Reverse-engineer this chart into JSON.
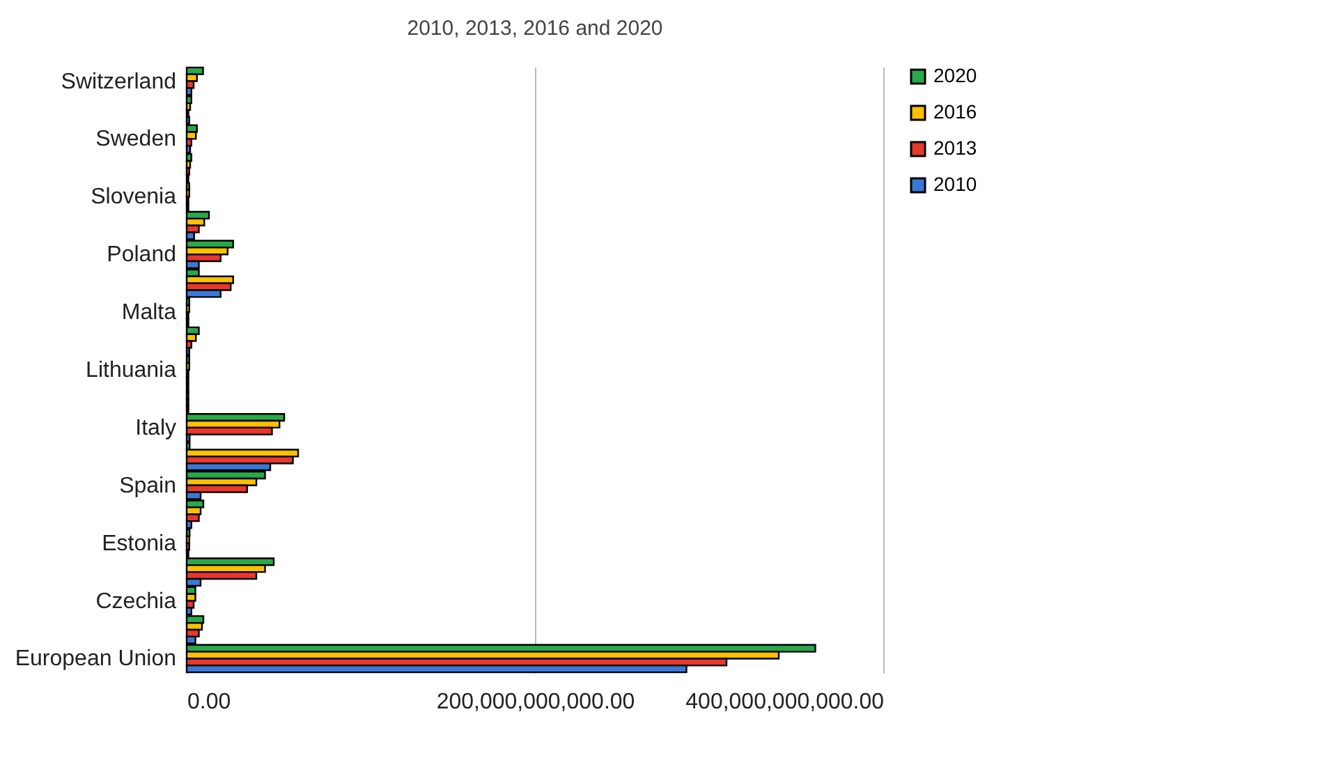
{
  "chart_data": {
    "type": "bar",
    "orientation": "horizontal",
    "title": "2010, 2013, 2016 and 2020",
    "categories": [
      "Switzerland",
      null,
      "Sweden",
      null,
      "Slovenia",
      null,
      "Poland",
      null,
      "Malta",
      null,
      "Lithuania",
      null,
      "Italy",
      null,
      "Spain",
      null,
      "Estonia",
      null,
      "Czechia",
      null,
      "European Union"
    ],
    "series": [
      {
        "name": "2020",
        "color": "#2aa84a",
        "values": [
          9400000000,
          2700000000,
          5900000000,
          2700000000,
          1500000000,
          12800000000,
          26700000000,
          7000000000,
          1500000000,
          7000000000,
          1500000000,
          1000000000,
          56000000000,
          1700000000,
          45000000000,
          9600000000,
          1700000000,
          50000000000,
          5000000000,
          9600000000,
          361000000000
        ]
      },
      {
        "name": "2016",
        "color": "#ffc000",
        "values": [
          5900000000,
          2000000000,
          5300000000,
          2000000000,
          1500000000,
          10100000000,
          23500000000,
          26700000000,
          1500000000,
          5300000000,
          1500000000,
          1000000000,
          53300000000,
          64000000000,
          40000000000,
          8000000000,
          1500000000,
          45000000000,
          5000000000,
          8800000000,
          340000000000
        ]
      },
      {
        "name": "2013",
        "color": "#e8372c",
        "values": [
          4000000000,
          1000000000,
          2700000000,
          1500000000,
          1000000000,
          7000000000,
          19500000000,
          25300000000,
          1000000000,
          2700000000,
          1000000000,
          1000000000,
          49000000000,
          61000000000,
          34700000000,
          7000000000,
          1500000000,
          40000000000,
          4000000000,
          7000000000,
          310000000000
        ]
      },
      {
        "name": "2010",
        "color": "#3a78d8",
        "values": [
          2700000000,
          1500000000,
          2000000000,
          1000000000,
          1000000000,
          4300000000,
          7000000000,
          19500000000,
          1000000000,
          1500000000,
          1000000000,
          1000000000,
          1700000000,
          48000000000,
          8000000000,
          2700000000,
          1000000000,
          8000000000,
          2700000000,
          5000000000,
          287000000000
        ]
      }
    ],
    "xlim": [
      0,
      400000000000
    ],
    "xticks": [
      {
        "value": 0,
        "label": "0.00"
      },
      {
        "value": 200000000000,
        "label": "200,000,000,000.00"
      },
      {
        "value": 400000000000,
        "label": "400,000,000,000.00"
      }
    ],
    "grid": "x",
    "legend": "right"
  }
}
